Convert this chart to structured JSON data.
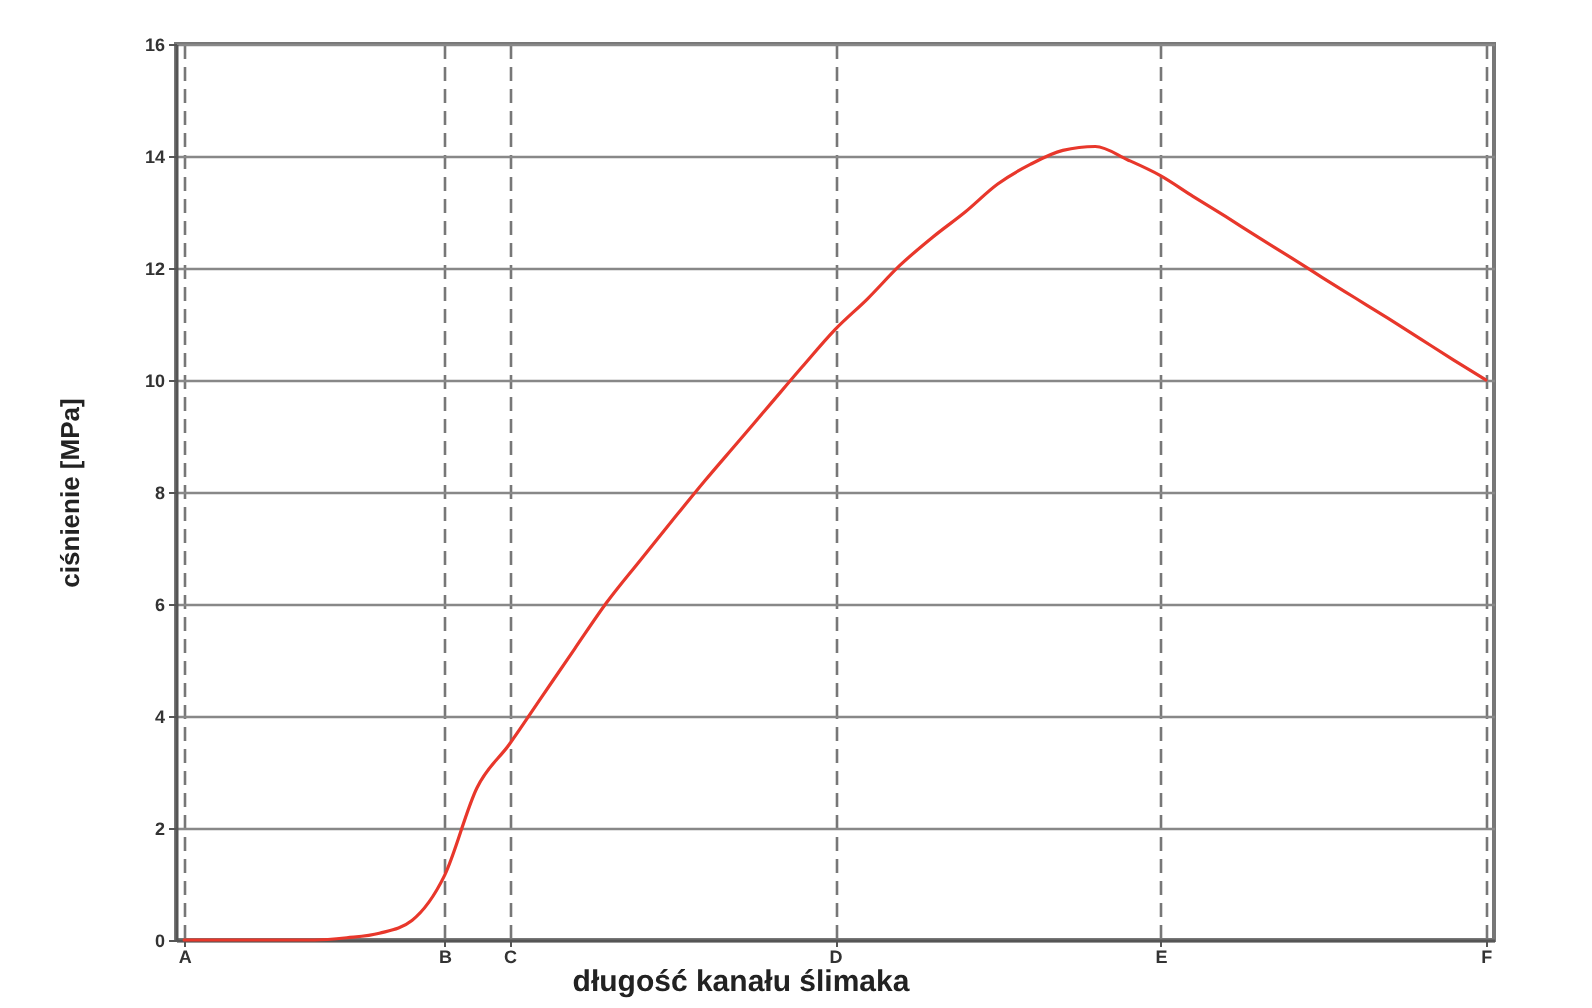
{
  "chart_data": {
    "type": "line",
    "xlabel": "długość kanału ślimaka",
    "ylabel": "ciśnienie [MPa]",
    "categories": [
      "A",
      null,
      null,
      null,
      null,
      null,
      null,
      null,
      "B",
      null,
      "C",
      null,
      null,
      null,
      null,
      null,
      null,
      null,
      null,
      null,
      "D",
      null,
      null,
      null,
      null,
      null,
      null,
      null,
      null,
      null,
      "E",
      null,
      null,
      null,
      null,
      null,
      null,
      null,
      null,
      null,
      "F"
    ],
    "series": [
      {
        "color": "#e8372b",
        "values": [
          0,
          0,
          0,
          0,
          0,
          0.04,
          0.12,
          0.35,
          1.15,
          2.72,
          3.5,
          4.35,
          5.2,
          6.04,
          6.77,
          7.49,
          8.2,
          8.88,
          9.56,
          10.24,
          10.9,
          11.45,
          12.05,
          12.55,
          13.0,
          13.5,
          13.85,
          14.1,
          14.17,
          13.93,
          13.65,
          13.28,
          12.92,
          12.55,
          12.19,
          11.82,
          11.46,
          11.1,
          10.73,
          10.36,
          10.0
        ]
      }
    ],
    "ylim": [
      0,
      16
    ],
    "yticks": [
      0,
      2,
      4,
      6,
      8,
      10,
      12,
      14,
      16
    ],
    "grid": true,
    "line_style": "solid"
  }
}
